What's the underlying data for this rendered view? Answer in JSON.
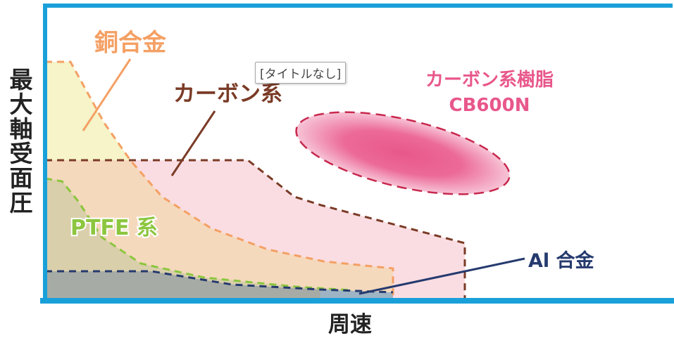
{
  "axes": {
    "y_label": "最大軸受面圧",
    "x_label": "周速"
  },
  "tooltip": "[タイトルなし]",
  "regions": {
    "copper": {
      "label": "銅合金",
      "color": "#f4a064"
    },
    "carbon": {
      "label": "カーボン系",
      "color": "#7a3b26"
    },
    "resin": {
      "label_line1": "カーボン系樹脂",
      "label_line2": "CB600N",
      "color": "#e8578a"
    },
    "ptfe": {
      "label": "PTFE 系",
      "color": "#8cc63f"
    },
    "aluminum": {
      "label": "Al 合金",
      "color": "#253a6e"
    }
  },
  "frame_color": "#1aa0d9"
}
